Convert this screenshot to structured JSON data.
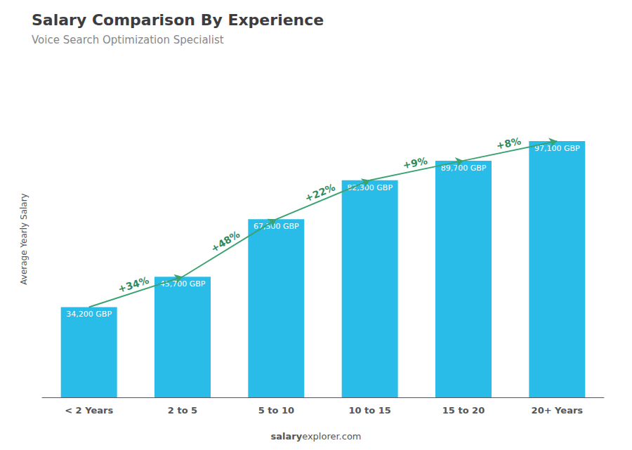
{
  "chart_data": {
    "type": "bar",
    "title": "Salary Comparison By Experience",
    "subtitle": "Voice Search Optimization Specialist",
    "categories": [
      "< 2 Years",
      "2 to 5",
      "5 to 10",
      "10 to 15",
      "15 to 20",
      "20+ Years"
    ],
    "values": [
      34200,
      45700,
      67500,
      82300,
      89700,
      97100
    ],
    "value_labels": [
      "34,200 GBP",
      "45,700 GBP",
      "67,500 GBP",
      "82,300 GBP",
      "89,700 GBP",
      "97,100 GBP"
    ],
    "data_labels": true,
    "color": "#29bce8",
    "ylabel": "Average Yearly Salary",
    "ylim": [
      0,
      120000
    ],
    "tick_labels": "x",
    "grid": false,
    "annotations": [
      "+34%",
      "+48%",
      "+22%",
      "+9%",
      "+8%"
    ],
    "watermark": [
      "salary",
      "explorer.com"
    ]
  }
}
